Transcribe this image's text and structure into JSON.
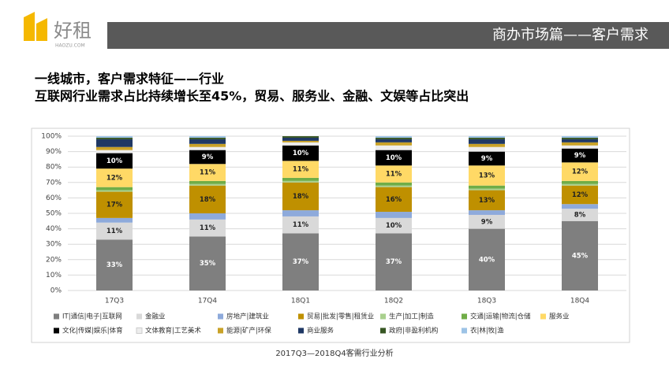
{
  "slide": {
    "logo": "好租",
    "logo_sub": "HAOZU.COM",
    "banner": "商办市场篇——客户需求",
    "heading": "一线城市，客户需求特征——行业",
    "subheading": "互联网行业需求占比持续增长至45%，贸易、服务业、金融、文娱等占比突出"
  },
  "chart_data": {
    "type": "stacked_bar",
    "caption": "2017Q3—2018Q4客需行业分析",
    "categories": [
      "17Q3",
      "17Q4",
      "18Q1",
      "18Q2",
      "18Q3",
      "18Q4"
    ],
    "ylim": [
      0,
      100
    ],
    "yticks": [
      {
        "value": 0,
        "label": "0%"
      },
      {
        "value": 10,
        "label": "10%"
      },
      {
        "value": 20,
        "label": "20%"
      },
      {
        "value": 30,
        "label": "30%"
      },
      {
        "value": 40,
        "label": "40%"
      },
      {
        "value": 50,
        "label": "50%"
      },
      {
        "value": 60,
        "label": "60%"
      },
      {
        "value": 70,
        "label": "70%"
      },
      {
        "value": 80,
        "label": "80%"
      },
      {
        "value": 90,
        "label": "90%"
      },
      {
        "value": 100,
        "label": "100%"
      }
    ],
    "grid": true,
    "series": [
      {
        "name": "IT|通信|电子|互联网",
        "color": "#7f7f7f",
        "values": [
          33,
          35,
          37,
          37,
          40,
          45
        ],
        "value_labels": [
          "33%",
          "35%",
          "37%",
          "37%",
          "40%",
          "45%"
        ]
      },
      {
        "name": "金融业",
        "color": "#d9d9d9",
        "values": [
          11,
          11,
          11,
          10,
          9,
          8
        ],
        "value_labels": [
          "11%",
          "11%",
          "11%",
          "10%",
          "9%",
          "8%"
        ]
      },
      {
        "name": "房地产|建筑业",
        "color": "#8eaadb",
        "values": [
          3,
          4,
          4,
          4,
          3,
          3
        ]
      },
      {
        "name": "贸易|批发|零售|租赁业",
        "color": "#bf9000",
        "values": [
          17,
          18,
          18,
          16,
          13,
          12
        ],
        "value_labels": [
          "17%",
          "18%",
          "18%",
          "16%",
          "13%",
          "12%"
        ]
      },
      {
        "name": "生产|加工|制造",
        "color": "#a9d08e",
        "values": [
          1,
          1,
          1,
          1,
          1,
          1
        ]
      },
      {
        "name": "交通|运输|物流|仓储",
        "color": "#70ad47",
        "values": [
          2,
          2,
          2,
          2,
          2,
          2
        ]
      },
      {
        "name": "服务业",
        "color": "#ffd966",
        "values": [
          12,
          11,
          11,
          11,
          13,
          12
        ],
        "value_labels": [
          "12%",
          "11%",
          "11%",
          "11%",
          "13%",
          "12%"
        ]
      },
      {
        "name": "文化|传媒|娱乐|体育",
        "color": "#000000",
        "values": [
          10,
          9,
          10,
          10,
          9,
          9
        ],
        "value_labels": [
          "10%",
          "9%",
          "10%",
          "10%",
          "9%",
          "9%"
        ]
      },
      {
        "name": "文体教育|工艺美术",
        "color": "#ededed",
        "values": [
          2,
          2,
          2,
          3,
          3,
          2
        ]
      },
      {
        "name": "能源|矿产|环保",
        "color": "#c9a227",
        "values": [
          2,
          2,
          1,
          2,
          2,
          2
        ]
      },
      {
        "name": "商业服务",
        "color": "#1f3864",
        "values": [
          5,
          3,
          2,
          2,
          3,
          2
        ]
      },
      {
        "name": "政府|非盈利机构",
        "color": "#375623",
        "values": [
          1,
          1,
          1,
          1,
          1,
          1
        ]
      },
      {
        "name": "衣|林|牧|渔",
        "color": "#9dc3e6",
        "values": [
          1,
          1,
          0,
          1,
          1,
          1
        ]
      }
    ]
  }
}
